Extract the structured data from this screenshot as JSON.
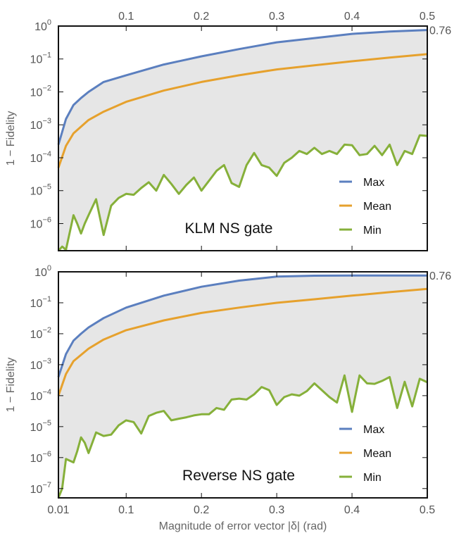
{
  "colors": {
    "max": "#5b7fbf",
    "mean": "#e6a12d",
    "min": "#86b03a",
    "band": "#e6e6e6",
    "frame": "#111111"
  },
  "x_axis_label": "Magnitude of error vector |δ| (rad)",
  "x_tick_labels": [
    "0.01",
    "0.1",
    "0.2",
    "0.3",
    "0.4",
    "0.5"
  ],
  "chart_data": [
    {
      "type": "line",
      "panel_label": "KLM NS gate",
      "ylabel": "1 − Fidelity",
      "yscale": "log",
      "ylim": [
        1.5e-07,
        1
      ],
      "xlim": [
        0.01,
        0.5
      ],
      "x_ticks": [
        0.1,
        0.2,
        0.3,
        0.4,
        0.5
      ],
      "y_ticks": [
        {
          "value": 1,
          "base": "10",
          "exp": "0"
        },
        {
          "value": 0.1,
          "base": "10",
          "exp": "−1"
        },
        {
          "value": 0.01,
          "base": "10",
          "exp": "−2"
        },
        {
          "value": 0.001,
          "base": "10",
          "exp": "−3"
        },
        {
          "value": 0.0001,
          "base": "10",
          "exp": "−4"
        },
        {
          "value": 1e-05,
          "base": "10",
          "exp": "−5"
        },
        {
          "value": 1e-06,
          "base": "10",
          "exp": "−6"
        }
      ],
      "end_label": "0.76",
      "legend": {
        "placement": "bottom-right",
        "entries": [
          "Max",
          "Mean",
          "Min"
        ]
      },
      "series": [
        {
          "name": "Max",
          "x": [
            0.01,
            0.02,
            0.03,
            0.04,
            0.05,
            0.07,
            0.1,
            0.15,
            0.2,
            0.25,
            0.3,
            0.35,
            0.4,
            0.45,
            0.5
          ],
          "y": [
            0.00025,
            0.0015,
            0.004,
            0.0065,
            0.01,
            0.02,
            0.032,
            0.068,
            0.12,
            0.2,
            0.32,
            0.43,
            0.58,
            0.68,
            0.76
          ]
        },
        {
          "name": "Mean",
          "x": [
            0.01,
            0.02,
            0.03,
            0.05,
            0.07,
            0.1,
            0.15,
            0.2,
            0.25,
            0.3,
            0.35,
            0.4,
            0.45,
            0.5
          ],
          "y": [
            5e-05,
            0.00023,
            0.00055,
            0.0014,
            0.0025,
            0.005,
            0.011,
            0.02,
            0.032,
            0.048,
            0.064,
            0.085,
            0.11,
            0.14
          ]
        },
        {
          "name": "Min",
          "x": [
            0.01,
            0.015,
            0.02,
            0.03,
            0.035,
            0.04,
            0.045,
            0.05,
            0.06,
            0.07,
            0.08,
            0.09,
            0.1,
            0.11,
            0.12,
            0.13,
            0.14,
            0.15,
            0.16,
            0.17,
            0.18,
            0.19,
            0.2,
            0.21,
            0.22,
            0.23,
            0.24,
            0.25,
            0.26,
            0.27,
            0.28,
            0.29,
            0.3,
            0.31,
            0.32,
            0.33,
            0.34,
            0.35,
            0.36,
            0.37,
            0.38,
            0.39,
            0.4,
            0.41,
            0.42,
            0.43,
            0.44,
            0.45,
            0.46,
            0.47,
            0.48,
            0.49,
            0.5
          ],
          "y": [
            1.5e-07,
            2e-07,
            1.6e-07,
            1.8e-06,
            1e-06,
            5e-07,
            1e-06,
            1.8e-06,
            5.5e-06,
            4.5e-07,
            3.5e-06,
            6e-06,
            8e-06,
            7.5e-06,
            1.2e-05,
            1.8e-05,
            1e-05,
            3e-05,
            1.6e-05,
            8e-06,
            1.5e-05,
            2.5e-05,
            1e-05,
            2e-05,
            4e-05,
            6e-05,
            1.7e-05,
            1.3e-05,
            6e-05,
            0.00014,
            6e-05,
            5e-05,
            2.8e-05,
            7e-05,
            0.0001,
            0.00016,
            0.00013,
            0.0002,
            0.00013,
            0.00016,
            0.00013,
            0.00025,
            0.00024,
            0.00012,
            0.00013,
            0.00023,
            0.00012,
            0.00025,
            6e-05,
            0.00016,
            0.00013,
            0.00048,
            0.00046
          ]
        }
      ]
    },
    {
      "type": "line",
      "panel_label": "Reverse NS gate",
      "ylabel": "1 − Fidelity",
      "yscale": "log",
      "ylim": [
        5e-08,
        1
      ],
      "xlim": [
        0.01,
        0.5
      ],
      "x_ticks": [
        0.01,
        0.1,
        0.2,
        0.3,
        0.4,
        0.5
      ],
      "y_ticks": [
        {
          "value": 1,
          "base": "10",
          "exp": "0"
        },
        {
          "value": 0.1,
          "base": "10",
          "exp": "−1"
        },
        {
          "value": 0.01,
          "base": "10",
          "exp": "−2"
        },
        {
          "value": 0.001,
          "base": "10",
          "exp": "−3"
        },
        {
          "value": 0.0001,
          "base": "10",
          "exp": "−4"
        },
        {
          "value": 1e-05,
          "base": "10",
          "exp": "−5"
        },
        {
          "value": 1e-06,
          "base": "10",
          "exp": "−6"
        },
        {
          "value": 1e-07,
          "base": "10",
          "exp": "−7"
        }
      ],
      "end_label": "0.76",
      "legend": {
        "placement": "bottom-right",
        "entries": [
          "Max",
          "Mean",
          "Min"
        ]
      },
      "series": [
        {
          "name": "Max",
          "x": [
            0.01,
            0.02,
            0.03,
            0.04,
            0.05,
            0.07,
            0.1,
            0.15,
            0.2,
            0.25,
            0.3,
            0.35,
            0.4,
            0.45,
            0.5
          ],
          "y": [
            0.0004,
            0.0022,
            0.006,
            0.01,
            0.016,
            0.032,
            0.07,
            0.17,
            0.33,
            0.52,
            0.7,
            0.75,
            0.76,
            0.76,
            0.76
          ]
        },
        {
          "name": "Mean",
          "x": [
            0.01,
            0.02,
            0.03,
            0.05,
            0.07,
            0.1,
            0.15,
            0.2,
            0.25,
            0.3,
            0.35,
            0.4,
            0.45,
            0.5
          ],
          "y": [
            0.0001,
            0.0005,
            0.0013,
            0.0033,
            0.0065,
            0.013,
            0.027,
            0.047,
            0.07,
            0.1,
            0.13,
            0.17,
            0.22,
            0.28
          ]
        },
        {
          "name": "Min",
          "x": [
            0.01,
            0.015,
            0.02,
            0.03,
            0.035,
            0.04,
            0.045,
            0.05,
            0.06,
            0.07,
            0.08,
            0.09,
            0.1,
            0.11,
            0.12,
            0.13,
            0.14,
            0.15,
            0.16,
            0.17,
            0.18,
            0.19,
            0.2,
            0.21,
            0.22,
            0.23,
            0.24,
            0.25,
            0.26,
            0.27,
            0.28,
            0.29,
            0.3,
            0.31,
            0.32,
            0.33,
            0.34,
            0.35,
            0.36,
            0.37,
            0.38,
            0.39,
            0.4,
            0.41,
            0.42,
            0.43,
            0.44,
            0.45,
            0.46,
            0.47,
            0.48,
            0.49,
            0.5
          ],
          "y": [
            5e-08,
            1e-07,
            9e-07,
            7e-07,
            1.6e-06,
            4.5e-06,
            3e-06,
            1.4e-06,
            6.5e-06,
            5e-06,
            5.5e-06,
            1.1e-05,
            1.6e-05,
            1.4e-05,
            6e-06,
            2.2e-05,
            2.8e-05,
            3.2e-05,
            1.6e-05,
            1.8e-05,
            2e-05,
            2.3e-05,
            2.5e-05,
            2.5e-05,
            4e-05,
            3.5e-05,
            7.5e-05,
            8e-05,
            7.5e-05,
            0.00011,
            0.00019,
            0.00015,
            5e-05,
            9e-05,
            0.00011,
            0.0001,
            0.00014,
            0.00025,
            0.00015,
            9e-05,
            6e-05,
            0.00045,
            3e-05,
            0.00045,
            0.00025,
            0.00024,
            0.0003,
            0.0004,
            4e-05,
            0.00028,
            4.5e-05,
            0.00035,
            0.00027
          ]
        }
      ]
    }
  ]
}
